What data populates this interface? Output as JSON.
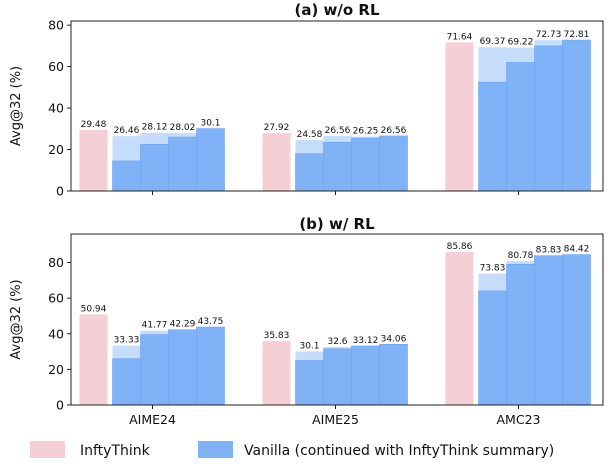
{
  "colors": {
    "infty": "#f4cfd6",
    "vanilla_top": "#7fb2f7",
    "vanilla_light": "#c5dcfb",
    "axis": "#222222"
  },
  "legend": {
    "infty_label": "InftyThink",
    "vanilla_label": "Vanilla (continued with InftyThink summary)"
  },
  "chart_data": [
    {
      "type": "bar",
      "title": "(a) w/o RL",
      "ylabel": "Avg@32 (%)",
      "ylim": [
        0,
        82
      ],
      "yticks": [
        0,
        20,
        40,
        60,
        80
      ],
      "show_xtick_labels": false,
      "categories": [
        "AIME24",
        "AIME25",
        "AMC23"
      ],
      "infty": [
        29.48,
        27.92,
        71.64
      ],
      "vanilla": [
        [
          {
            "total": 26.46,
            "base": 14.5
          },
          {
            "total": 28.12,
            "base": 22.5
          },
          {
            "total": 28.02,
            "base": 26.0
          },
          {
            "total": 30.1,
            "base": 30.1
          }
        ],
        [
          {
            "total": 24.58,
            "base": 18.0
          },
          {
            "total": 26.56,
            "base": 23.5
          },
          {
            "total": 26.25,
            "base": 25.5
          },
          {
            "total": 26.56,
            "base": 26.56
          }
        ],
        [
          {
            "total": 69.37,
            "base": 52.5
          },
          {
            "total": 69.22,
            "base": 62.0
          },
          {
            "total": 72.73,
            "base": 70.0
          },
          {
            "total": 72.81,
            "base": 72.81
          }
        ]
      ],
      "infty_labels": [
        "29.48",
        "27.92",
        "71.64"
      ],
      "vanilla_labels": [
        [
          "26.46",
          "28.12",
          "28.02",
          "30.1"
        ],
        [
          "24.58",
          "26.56",
          "26.25",
          "26.56"
        ],
        [
          "69.37",
          "69.22",
          "72.73",
          "72.81"
        ]
      ]
    },
    {
      "type": "bar",
      "title": "(b) w/ RL",
      "ylabel": "Avg@32 (%)",
      "ylim": [
        0,
        96
      ],
      "yticks": [
        0,
        20,
        40,
        60,
        80
      ],
      "show_xtick_labels": true,
      "categories": [
        "AIME24",
        "AIME25",
        "AMC23"
      ],
      "infty": [
        50.94,
        35.83,
        85.86
      ],
      "vanilla": [
        [
          {
            "total": 33.33,
            "base": 26.0
          },
          {
            "total": 41.77,
            "base": 39.5
          },
          {
            "total": 42.29,
            "base": 42.29
          },
          {
            "total": 43.75,
            "base": 43.75
          }
        ],
        [
          {
            "total": 30.1,
            "base": 25.0
          },
          {
            "total": 32.6,
            "base": 31.5
          },
          {
            "total": 33.12,
            "base": 33.12
          },
          {
            "total": 34.06,
            "base": 34.06
          }
        ],
        [
          {
            "total": 73.83,
            "base": 64.0
          },
          {
            "total": 80.78,
            "base": 79.0
          },
          {
            "total": 83.83,
            "base": 83.83
          },
          {
            "total": 84.42,
            "base": 84.42
          }
        ]
      ],
      "infty_labels": [
        "50.94",
        "35.83",
        "85.86"
      ],
      "vanilla_labels": [
        [
          "33.33",
          "41.77",
          "42.29",
          "43.75"
        ],
        [
          "30.1",
          "32.6",
          "33.12",
          "34.06"
        ],
        [
          "73.83",
          "80.78",
          "83.83",
          "84.42"
        ]
      ]
    }
  ]
}
